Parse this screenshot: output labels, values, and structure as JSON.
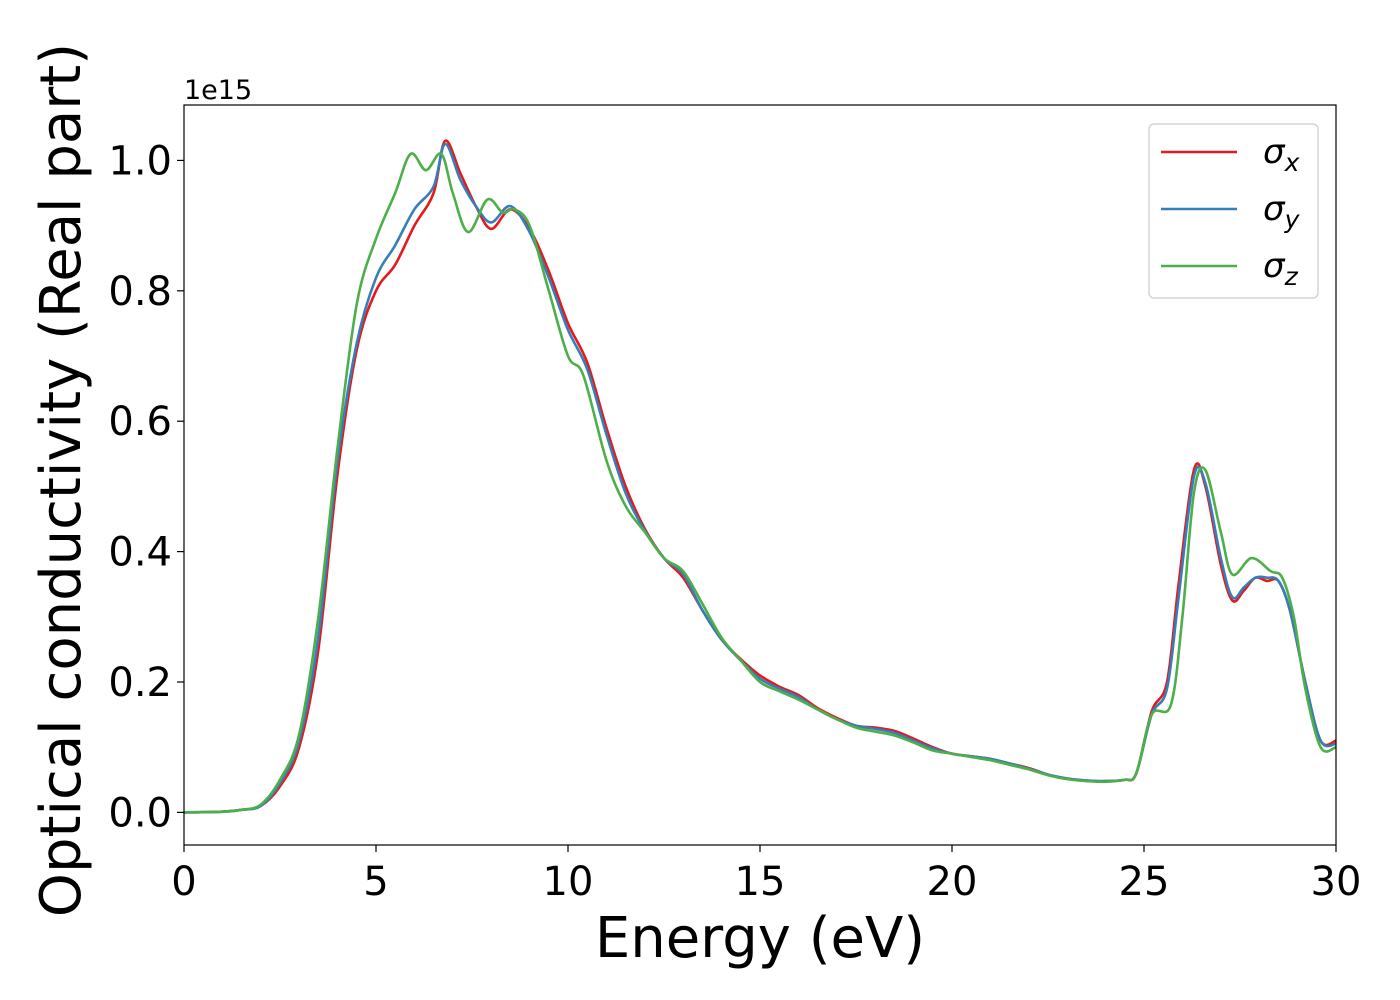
{
  "chart_data": {
    "type": "line",
    "title": "",
    "xlabel": "Energy (eV)",
    "ylabel": "Optical conductivity (Real part)",
    "y_offset_text": "1e15",
    "xlim": [
      0,
      30
    ],
    "ylim": [
      -0.05,
      1.085
    ],
    "x_ticks": [
      0,
      5,
      10,
      15,
      20,
      25,
      30
    ],
    "x_tick_labels": [
      "0",
      "5",
      "10",
      "15",
      "20",
      "25",
      "30"
    ],
    "y_ticks": [
      0.0,
      0.2,
      0.4,
      0.6,
      0.8,
      1.0
    ],
    "y_tick_labels": [
      "0.0",
      "0.2",
      "0.4",
      "0.6",
      "0.8",
      "1.0"
    ],
    "grid": false,
    "legend_position": "top-right",
    "series": [
      {
        "name": "σx",
        "base": "σ",
        "sub": "x",
        "color": "#e41a1c",
        "points": [
          [
            0,
            0
          ],
          [
            1,
            0.001
          ],
          [
            1.5,
            0.004
          ],
          [
            2,
            0.01
          ],
          [
            2.5,
            0.04
          ],
          [
            3,
            0.1
          ],
          [
            3.5,
            0.25
          ],
          [
            4,
            0.52
          ],
          [
            4.5,
            0.71
          ],
          [
            5,
            0.8
          ],
          [
            5.5,
            0.84
          ],
          [
            6,
            0.9
          ],
          [
            6.5,
            0.95
          ],
          [
            6.8,
            1.03
          ],
          [
            7.2,
            0.98
          ],
          [
            7.6,
            0.93
          ],
          [
            8,
            0.895
          ],
          [
            8.5,
            0.925
          ],
          [
            9,
            0.895
          ],
          [
            9.5,
            0.83
          ],
          [
            10,
            0.75
          ],
          [
            10.5,
            0.69
          ],
          [
            11,
            0.59
          ],
          [
            11.5,
            0.5
          ],
          [
            12,
            0.435
          ],
          [
            12.5,
            0.39
          ],
          [
            13,
            0.36
          ],
          [
            13.5,
            0.31
          ],
          [
            14,
            0.265
          ],
          [
            14.5,
            0.235
          ],
          [
            15,
            0.21
          ],
          [
            15.5,
            0.193
          ],
          [
            16,
            0.18
          ],
          [
            16.5,
            0.16
          ],
          [
            17,
            0.145
          ],
          [
            17.5,
            0.133
          ],
          [
            18,
            0.13
          ],
          [
            18.5,
            0.125
          ],
          [
            19,
            0.113
          ],
          [
            19.5,
            0.1
          ],
          [
            20,
            0.09
          ],
          [
            20.5,
            0.086
          ],
          [
            21,
            0.082
          ],
          [
            21.5,
            0.075
          ],
          [
            22,
            0.068
          ],
          [
            22.5,
            0.058
          ],
          [
            23,
            0.052
          ],
          [
            23.5,
            0.049
          ],
          [
            24,
            0.048
          ],
          [
            24.5,
            0.05
          ],
          [
            24.8,
            0.06
          ],
          [
            25.2,
            0.155
          ],
          [
            25.6,
            0.2
          ],
          [
            25.9,
            0.35
          ],
          [
            26.3,
            0.525
          ],
          [
            26.6,
            0.5
          ],
          [
            27,
            0.38
          ],
          [
            27.3,
            0.325
          ],
          [
            27.6,
            0.34
          ],
          [
            27.9,
            0.36
          ],
          [
            28.2,
            0.355
          ],
          [
            28.5,
            0.355
          ],
          [
            28.8,
            0.31
          ],
          [
            29.2,
            0.2
          ],
          [
            29.6,
            0.11
          ],
          [
            30,
            0.11
          ]
        ]
      },
      {
        "name": "σy",
        "base": "σ",
        "sub": "y",
        "color": "#377eb8",
        "points": [
          [
            0,
            0
          ],
          [
            1,
            0.001
          ],
          [
            1.5,
            0.004
          ],
          [
            2,
            0.01
          ],
          [
            2.5,
            0.045
          ],
          [
            3,
            0.11
          ],
          [
            3.5,
            0.27
          ],
          [
            4,
            0.54
          ],
          [
            4.5,
            0.72
          ],
          [
            5,
            0.82
          ],
          [
            5.5,
            0.87
          ],
          [
            6,
            0.925
          ],
          [
            6.5,
            0.96
          ],
          [
            6.8,
            1.025
          ],
          [
            7.2,
            0.97
          ],
          [
            7.6,
            0.93
          ],
          [
            8,
            0.905
          ],
          [
            8.5,
            0.93
          ],
          [
            9,
            0.89
          ],
          [
            9.5,
            0.82
          ],
          [
            10,
            0.74
          ],
          [
            10.5,
            0.68
          ],
          [
            11,
            0.58
          ],
          [
            11.5,
            0.49
          ],
          [
            12,
            0.432
          ],
          [
            12.5,
            0.39
          ],
          [
            13,
            0.365
          ],
          [
            13.5,
            0.31
          ],
          [
            14,
            0.265
          ],
          [
            14.5,
            0.233
          ],
          [
            15,
            0.205
          ],
          [
            15.5,
            0.19
          ],
          [
            16,
            0.177
          ],
          [
            16.5,
            0.158
          ],
          [
            17,
            0.143
          ],
          [
            17.5,
            0.133
          ],
          [
            18,
            0.128
          ],
          [
            18.5,
            0.122
          ],
          [
            19,
            0.11
          ],
          [
            19.5,
            0.098
          ],
          [
            20,
            0.09
          ],
          [
            20.5,
            0.086
          ],
          [
            21,
            0.082
          ],
          [
            21.5,
            0.075
          ],
          [
            22,
            0.067
          ],
          [
            22.5,
            0.058
          ],
          [
            23,
            0.052
          ],
          [
            23.5,
            0.049
          ],
          [
            24,
            0.048
          ],
          [
            24.5,
            0.05
          ],
          [
            24.8,
            0.06
          ],
          [
            25.2,
            0.15
          ],
          [
            25.6,
            0.19
          ],
          [
            25.9,
            0.33
          ],
          [
            26.3,
            0.515
          ],
          [
            26.6,
            0.505
          ],
          [
            27,
            0.39
          ],
          [
            27.3,
            0.33
          ],
          [
            27.6,
            0.345
          ],
          [
            27.9,
            0.36
          ],
          [
            28.2,
            0.36
          ],
          [
            28.5,
            0.355
          ],
          [
            28.8,
            0.31
          ],
          [
            29.2,
            0.2
          ],
          [
            29.6,
            0.11
          ],
          [
            30,
            0.105
          ]
        ]
      },
      {
        "name": "σz",
        "base": "σ",
        "sub": "z",
        "color": "#4daf4a",
        "points": [
          [
            0,
            0
          ],
          [
            1,
            0.001
          ],
          [
            1.5,
            0.004
          ],
          [
            2,
            0.012
          ],
          [
            2.5,
            0.05
          ],
          [
            3,
            0.12
          ],
          [
            3.5,
            0.3
          ],
          [
            4,
            0.56
          ],
          [
            4.5,
            0.78
          ],
          [
            5,
            0.88
          ],
          [
            5.5,
            0.95
          ],
          [
            5.9,
            1.01
          ],
          [
            6.3,
            0.985
          ],
          [
            6.7,
            1.01
          ],
          [
            7,
            0.95
          ],
          [
            7.4,
            0.89
          ],
          [
            7.9,
            0.94
          ],
          [
            8.3,
            0.92
          ],
          [
            8.6,
            0.925
          ],
          [
            9,
            0.9
          ],
          [
            9.5,
            0.8
          ],
          [
            10,
            0.7
          ],
          [
            10.4,
            0.67
          ],
          [
            11,
            0.54
          ],
          [
            11.5,
            0.47
          ],
          [
            12,
            0.43
          ],
          [
            12.5,
            0.39
          ],
          [
            13,
            0.37
          ],
          [
            13.5,
            0.32
          ],
          [
            14,
            0.268
          ],
          [
            14.5,
            0.233
          ],
          [
            15,
            0.2
          ],
          [
            15.5,
            0.186
          ],
          [
            16,
            0.173
          ],
          [
            16.5,
            0.158
          ],
          [
            17,
            0.143
          ],
          [
            17.5,
            0.13
          ],
          [
            18,
            0.124
          ],
          [
            18.5,
            0.118
          ],
          [
            19,
            0.107
          ],
          [
            19.5,
            0.095
          ],
          [
            20,
            0.09
          ],
          [
            20.5,
            0.085
          ],
          [
            21,
            0.08
          ],
          [
            21.5,
            0.073
          ],
          [
            22,
            0.066
          ],
          [
            22.5,
            0.057
          ],
          [
            23,
            0.051
          ],
          [
            23.5,
            0.048
          ],
          [
            24,
            0.047
          ],
          [
            24.5,
            0.05
          ],
          [
            24.8,
            0.06
          ],
          [
            25.2,
            0.15
          ],
          [
            25.7,
            0.165
          ],
          [
            26,
            0.3
          ],
          [
            26.3,
            0.49
          ],
          [
            26.6,
            0.525
          ],
          [
            27,
            0.43
          ],
          [
            27.3,
            0.365
          ],
          [
            27.8,
            0.39
          ],
          [
            28.3,
            0.37
          ],
          [
            28.6,
            0.36
          ],
          [
            28.9,
            0.3
          ],
          [
            29.2,
            0.19
          ],
          [
            29.6,
            0.1
          ],
          [
            30,
            0.1
          ]
        ]
      }
    ]
  }
}
